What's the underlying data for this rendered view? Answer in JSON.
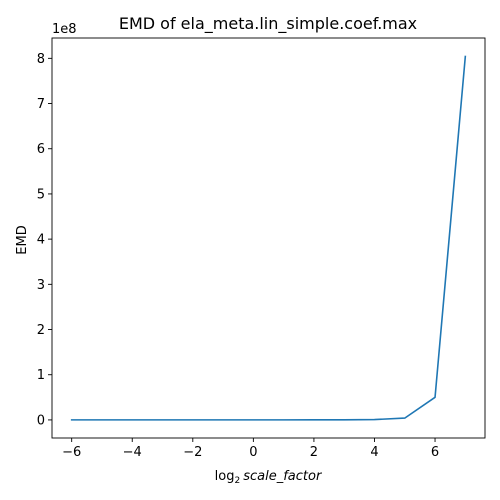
{
  "chart_data": {
    "type": "line",
    "title": "EMD of ela_meta.lin_simple.coef.max",
    "xlabel_func": "log",
    "xlabel_base": "2",
    "xlabel_var": "scale_factor",
    "ylabel": "EMD",
    "y_offset_label": "1e8",
    "xlim": [
      -6.65,
      7.65
    ],
    "ylim": [
      -0.4,
      8.45
    ],
    "y_scale": 100000000,
    "xticks": [
      -6,
      -4,
      -2,
      0,
      2,
      4,
      6
    ],
    "xtick_labels": [
      "−6",
      "−4",
      "−2",
      "0",
      "2",
      "4",
      "6"
    ],
    "yticks": [
      0,
      1,
      2,
      3,
      4,
      5,
      6,
      7,
      8
    ],
    "ytick_labels": [
      "0",
      "1",
      "2",
      "3",
      "4",
      "5",
      "6",
      "7",
      "8"
    ],
    "grid": false,
    "series": [
      {
        "color": "#1f77b4",
        "x": [
          -6,
          -5,
          -4,
          -3,
          -2,
          -1,
          0,
          1,
          2,
          3,
          4,
          5,
          6,
          7
        ],
        "y": [
          0.001,
          0.001,
          0.001,
          0.001,
          0.001,
          0.001,
          0.001,
          0.001,
          0.002,
          0.003,
          0.008,
          0.04,
          0.5,
          8.04
        ]
      }
    ]
  }
}
